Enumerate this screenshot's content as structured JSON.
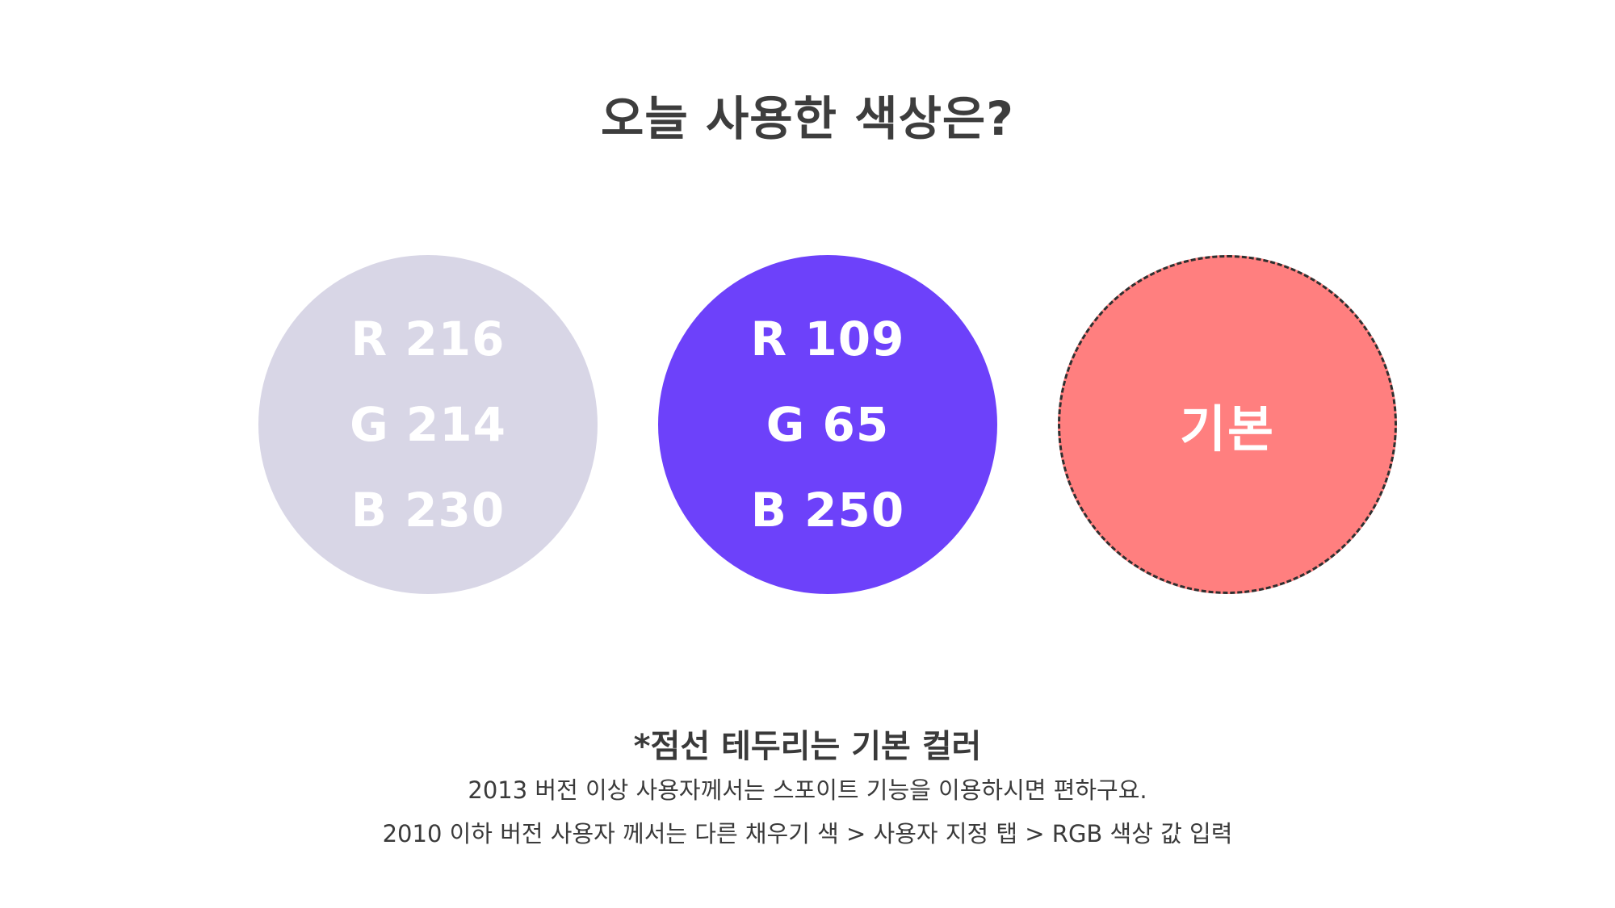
{
  "title": "오늘 사용한 색상은?",
  "circles": [
    {
      "color": "#d8d6e6",
      "r": "R 216",
      "g": "G 214",
      "b": "B 230"
    },
    {
      "color": "#6d41fa",
      "r": "R 109",
      "g": "G 65",
      "b": "B 250"
    },
    {
      "color": "#ff7f7f",
      "border": "dashed",
      "label": "기본"
    }
  ],
  "note": {
    "heading": "*점선 테두리는 기본 컬러",
    "line1": "2013 버전 이상 사용자께서는 스포이트 기능을 이용하시면 편하구요.",
    "line2": "2010 이하 버전 사용자 께서는 다른 채우기 색 > 사용자 지정 탭 > RGB 색상 값 입력"
  }
}
